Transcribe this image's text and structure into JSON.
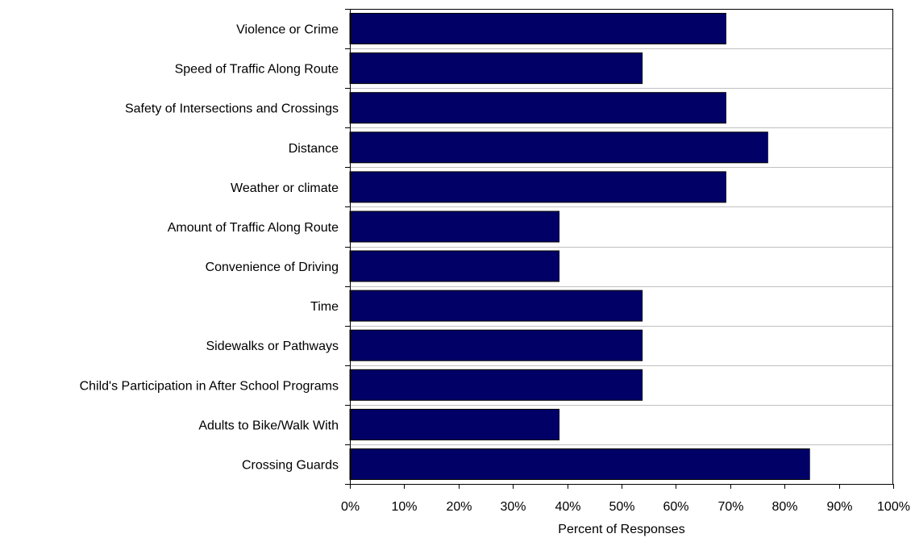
{
  "chart_data": {
    "type": "bar",
    "orientation": "horizontal",
    "categories": [
      "Violence or Crime",
      "Speed of Traffic Along Route",
      "Safety of Intersections and Crossings",
      "Distance",
      "Weather or climate",
      "Amount of Traffic Along Route",
      "Convenience of Driving",
      "Time",
      "Sidewalks or Pathways",
      "Child's Participation in After School Programs",
      "Adults to Bike/Walk With",
      "Crossing Guards"
    ],
    "values": [
      69.2,
      53.8,
      69.2,
      76.9,
      69.2,
      38.5,
      38.5,
      53.8,
      53.8,
      53.8,
      38.5,
      84.6
    ],
    "xlabel": "Percent of Responses",
    "ylabel": "",
    "xlim": [
      0,
      100
    ],
    "xticks": [
      "0%",
      "10%",
      "20%",
      "30%",
      "40%",
      "50%",
      "60%",
      "70%",
      "80%",
      "90%",
      "100%"
    ],
    "grid": "horizontal",
    "legend": "none",
    "colors": {
      "bar": "#000066",
      "grid": "#c0c0c0",
      "axis": "#000000"
    }
  }
}
